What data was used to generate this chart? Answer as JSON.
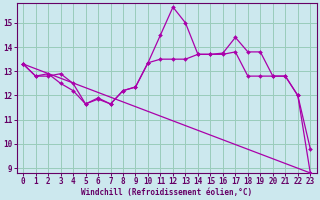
{
  "bg_color": "#cce8ee",
  "line_color": "#aa00aa",
  "grid_color": "#99ccbb",
  "spine_color": "#660066",
  "xlabel": "Windchill (Refroidissement éolien,°C)",
  "xlabel_color": "#660066",
  "tick_color": "#660066",
  "xlim": [
    -0.5,
    23.5
  ],
  "ylim": [
    8.8,
    15.8
  ],
  "yticks": [
    9,
    10,
    11,
    12,
    13,
    14,
    15
  ],
  "xticks": [
    0,
    1,
    2,
    3,
    4,
    5,
    6,
    7,
    8,
    9,
    10,
    11,
    12,
    13,
    14,
    15,
    16,
    17,
    18,
    19,
    20,
    21,
    22,
    23
  ],
  "series1_x": [
    0,
    1,
    2,
    3,
    4,
    5,
    6,
    7,
    8,
    9,
    10,
    11,
    12,
    13,
    14,
    15,
    16,
    17,
    18,
    19,
    20,
    21,
    22,
    23
  ],
  "series1_y": [
    13.3,
    12.8,
    12.9,
    12.5,
    12.2,
    11.65,
    11.85,
    11.65,
    12.2,
    12.35,
    13.35,
    13.5,
    13.5,
    13.5,
    13.7,
    13.7,
    13.7,
    13.8,
    12.8,
    12.8,
    12.8,
    12.8,
    12.0,
    9.8
  ],
  "series2_x": [
    0,
    1,
    2,
    3,
    4,
    5,
    6,
    7,
    8,
    9,
    10,
    11,
    12,
    13,
    14,
    15,
    16,
    17,
    18,
    19,
    20,
    21,
    22,
    23
  ],
  "series2_y": [
    13.3,
    12.8,
    12.8,
    12.9,
    12.5,
    11.65,
    11.9,
    11.65,
    12.2,
    12.35,
    13.35,
    14.5,
    15.65,
    15.0,
    13.7,
    13.7,
    13.75,
    14.4,
    13.8,
    13.8,
    12.8,
    12.8,
    12.0,
    8.8
  ],
  "series3_x": [
    0,
    23
  ],
  "series3_y": [
    13.3,
    8.8
  ],
  "marker_style": "D",
  "marker_size": 2.0,
  "line_width": 0.9
}
